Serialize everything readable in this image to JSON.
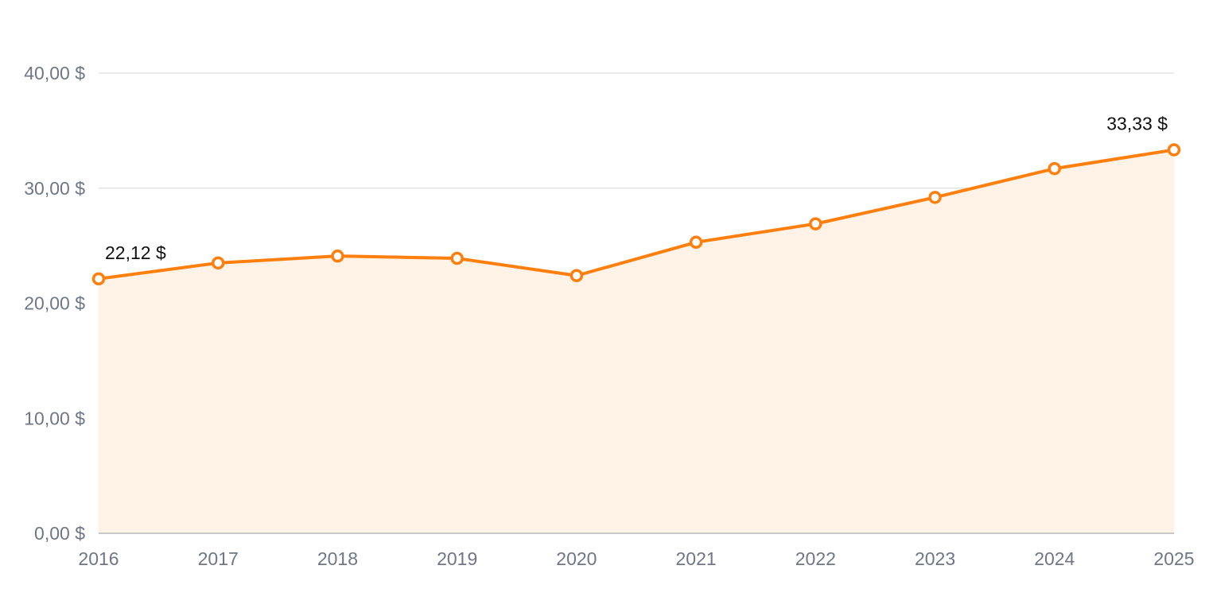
{
  "chart_data": {
    "type": "area",
    "title": "",
    "xlabel": "",
    "ylabel": "",
    "categories": [
      "2016",
      "2017",
      "2018",
      "2019",
      "2020",
      "2021",
      "2022",
      "2023",
      "2024",
      "2025"
    ],
    "series": [
      {
        "values": [
          22.12,
          23.5,
          24.1,
          23.9,
          22.4,
          25.3,
          26.9,
          29.2,
          31.7,
          33.33
        ],
        "color": "#ff7f0e",
        "fill_color": "#fff2e6"
      }
    ],
    "ylim": [
      0,
      40
    ],
    "y_ticks": [
      0,
      10,
      20,
      30,
      40
    ],
    "y_tick_labels": [
      "0,00 $",
      "10,00 $",
      "20,00 $",
      "30,00 $",
      "40,00 $"
    ],
    "data_labels": [
      {
        "index": 0,
        "text": "22,12 $"
      },
      {
        "index": 9,
        "text": "33,33 $"
      }
    ],
    "grid": true,
    "legend": "none"
  }
}
